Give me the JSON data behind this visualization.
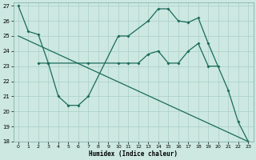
{
  "xlabel": "Humidex (Indice chaleur)",
  "bg_color": "#cce8e0",
  "grid_color": "#aacfc8",
  "line_color": "#1a6b5a",
  "xlim": [
    -0.5,
    23.5
  ],
  "ylim": [
    18,
    27.2
  ],
  "yticks": [
    18,
    19,
    20,
    21,
    22,
    23,
    24,
    25,
    26,
    27
  ],
  "xticks": [
    0,
    1,
    2,
    3,
    4,
    5,
    6,
    7,
    8,
    9,
    10,
    11,
    12,
    13,
    14,
    15,
    16,
    17,
    18,
    19,
    20,
    21,
    22,
    23
  ],
  "line1_x": [
    0,
    1,
    2,
    3,
    4,
    5,
    6,
    7,
    10,
    11,
    13,
    14,
    15,
    16,
    17,
    18,
    19,
    21,
    22,
    23
  ],
  "line1_y": [
    27.0,
    25.3,
    25.1,
    23.2,
    21.0,
    20.4,
    20.4,
    21.0,
    25.0,
    25.0,
    26.0,
    26.8,
    26.8,
    26.0,
    25.9,
    26.2,
    24.5,
    21.4,
    19.3,
    18.0
  ],
  "line2_x": [
    2,
    3,
    7,
    10,
    11,
    12,
    13,
    14,
    15,
    16,
    17,
    18,
    19,
    20
  ],
  "line2_y": [
    23.2,
    23.2,
    23.2,
    23.2,
    23.2,
    23.2,
    23.8,
    24.0,
    23.2,
    23.2,
    24.0,
    24.5,
    23.0,
    23.0
  ],
  "line3_x": [
    0,
    23
  ],
  "line3_y": [
    25.0,
    18.0
  ]
}
